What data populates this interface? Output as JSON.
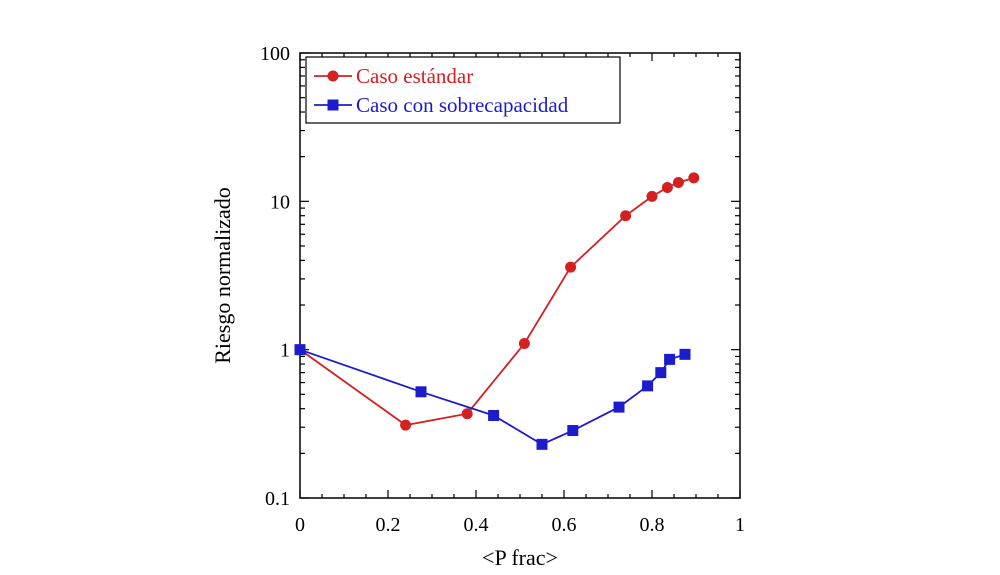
{
  "chart_data": {
    "type": "line",
    "title": "",
    "xlabel": "<P frac>",
    "ylabel": "Riesgo normalizado",
    "xlim": [
      0,
      1
    ],
    "ylim": [
      0.1,
      100
    ],
    "y_scale": "log",
    "x_ticks": [
      0,
      0.2,
      0.4,
      0.6,
      0.8,
      1
    ],
    "x_tick_labels": [
      "0",
      "0.2",
      "0.4",
      "0.6",
      "0.8",
      "1"
    ],
    "y_ticks": [
      0.1,
      1,
      10,
      100
    ],
    "y_tick_labels": [
      "0.1",
      "1",
      "10",
      "100"
    ],
    "grid": false,
    "legend_position": "top-left",
    "series": [
      {
        "name": "Caso estándar",
        "color": "#d42020",
        "marker": "circle",
        "x": [
          0,
          0.24,
          0.38,
          0.51,
          0.615,
          0.74,
          0.8,
          0.835,
          0.86,
          0.895
        ],
        "y": [
          1.0,
          0.31,
          0.37,
          1.1,
          3.6,
          8.0,
          10.8,
          12.4,
          13.4,
          14.4
        ]
      },
      {
        "name": "Caso con sobrecapacidad",
        "color": "#1c1ccc",
        "marker": "square",
        "x": [
          0,
          0.275,
          0.44,
          0.55,
          0.62,
          0.725,
          0.79,
          0.82,
          0.84,
          0.875
        ],
        "y": [
          1.0,
          0.52,
          0.36,
          0.23,
          0.285,
          0.41,
          0.57,
          0.7,
          0.86,
          0.93
        ]
      }
    ]
  }
}
